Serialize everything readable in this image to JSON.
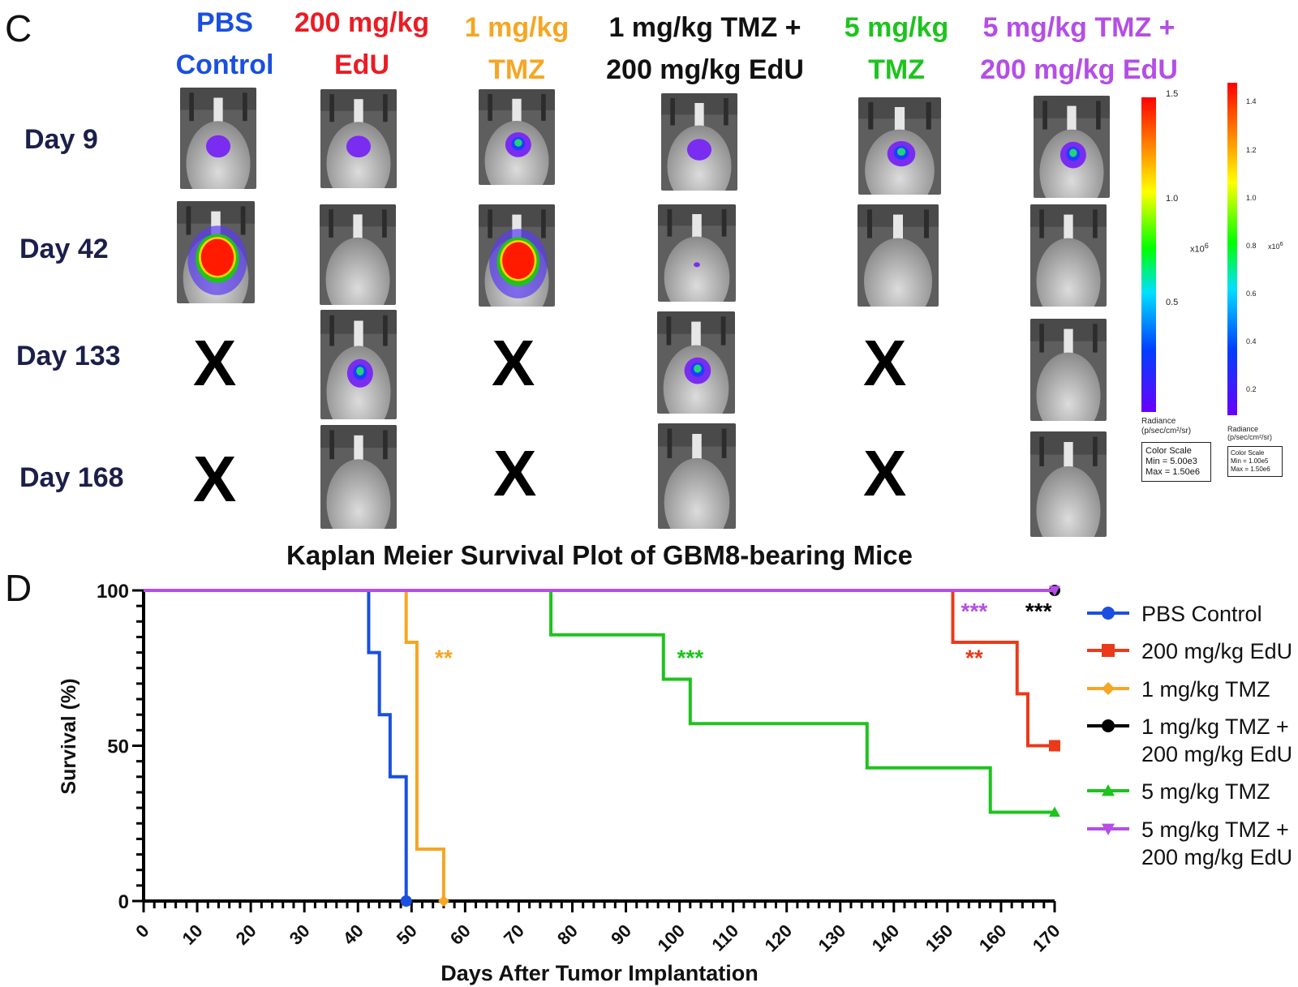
{
  "panel_c": {
    "letter": "C",
    "groups": [
      {
        "line1": "PBS",
        "line2": "Control",
        "color": "#1a4fe0"
      },
      {
        "line1": "200 mg/kg",
        "line2": "EdU",
        "color": "#ea1c24"
      },
      {
        "line1": "1 mg/kg",
        "line2": "TMZ",
        "color": "#f5a623"
      },
      {
        "line1": "1 mg/kg TMZ +",
        "line2": "200 mg/kg EdU",
        "color": "#111111"
      },
      {
        "line1": "5 mg/kg",
        "line2": "TMZ",
        "color": "#1ec31e"
      },
      {
        "line1": "5 mg/kg TMZ +",
        "line2": "200 mg/kg EdU",
        "color": "#b44ee6"
      }
    ],
    "days": [
      "Day 9",
      "Day 42",
      "Day 133",
      "Day 168"
    ],
    "dead_mark": "X",
    "colorbar_left": {
      "ticks": [
        "1.5",
        "1.0",
        "0.5"
      ],
      "exponent": "x10",
      "exponent_power": "6",
      "radiance_label": "Radiance",
      "radiance_units": "(p/sec/cm²/sr)",
      "scale_title": "Color Scale",
      "scale_min": "Min = 5.00e3",
      "scale_max": "Max = 1.50e6"
    },
    "colorbar_right": {
      "ticks": [
        "1.4",
        "1.2",
        "1.0",
        "0.8",
        "0.6",
        "0.4",
        "0.2"
      ],
      "exponent": "x10",
      "exponent_power": "6",
      "radiance_label": "Radiance",
      "radiance_units": "(p/sec/cm²/sr)",
      "scale_title": "Color Scale",
      "scale_min": "Min = 1.00e5",
      "scale_max": "Max = 1.50e6"
    }
  },
  "panel_d": {
    "letter": "D"
  },
  "chart_data": {
    "type": "line",
    "title": "Kaplan Meier Survival Plot of GBM8-bearing Mice",
    "xlabel": "Days After Tumor Implantation",
    "ylabel": "Survival (%)",
    "xlim": [
      0,
      170
    ],
    "ylim": [
      0,
      100
    ],
    "x_ticks": [
      0,
      10,
      20,
      30,
      40,
      50,
      60,
      70,
      80,
      90,
      100,
      110,
      120,
      130,
      140,
      150,
      160,
      170
    ],
    "y_ticks": [
      0,
      50,
      100
    ],
    "series": [
      {
        "name": "PBS Control",
        "color": "#1a4fe0",
        "marker": "circle",
        "steps": [
          [
            0,
            100
          ],
          [
            42,
            80
          ],
          [
            44,
            60
          ],
          [
            46,
            40
          ],
          [
            49,
            0
          ]
        ]
      },
      {
        "name": "200 mg/kg EdU",
        "color": "#ea3a1a",
        "marker": "square",
        "steps": [
          [
            0,
            100
          ],
          [
            151,
            83.3
          ],
          [
            163,
            66.7
          ],
          [
            165,
            50
          ],
          [
            170,
            50
          ]
        ]
      },
      {
        "name": "1 mg/kg TMZ",
        "color": "#f5a623",
        "marker": "diamond",
        "steps": [
          [
            0,
            100
          ],
          [
            49,
            83.3
          ],
          [
            51,
            16.7
          ],
          [
            56,
            0
          ]
        ]
      },
      {
        "name": "1 mg/kg TMZ + 200 mg/kg EdU",
        "legend_line1": "1 mg/kg TMZ +",
        "legend_line2": "200 mg/kg EdU",
        "color": "#000000",
        "marker": "circle",
        "steps": [
          [
            0,
            100
          ],
          [
            170,
            100
          ]
        ]
      },
      {
        "name": "5 mg/kg TMZ",
        "color": "#1ec31e",
        "marker": "triangle",
        "steps": [
          [
            0,
            100
          ],
          [
            76,
            85.7
          ],
          [
            97,
            71.4
          ],
          [
            102,
            57.1
          ],
          [
            135,
            42.9
          ],
          [
            158,
            28.6
          ],
          [
            170,
            28.6
          ]
        ]
      },
      {
        "name": "5 mg/kg TMZ + 200 mg/kg EdU",
        "legend_line1": "5 mg/kg TMZ +",
        "legend_line2": "200 mg/kg EdU",
        "color": "#b44ee6",
        "marker": "triangle-down",
        "steps": [
          [
            0,
            100
          ],
          [
            170,
            100
          ]
        ]
      }
    ],
    "annotations": [
      {
        "text": "**",
        "x": 56,
        "y": 79,
        "color": "#f5a623"
      },
      {
        "text": "***",
        "x": 102,
        "y": 79,
        "color": "#1ec31e"
      },
      {
        "text": "**",
        "x": 155,
        "y": 79,
        "color": "#ea3a1a"
      },
      {
        "text": "***",
        "x": 155,
        "y": 94,
        "color": "#b44ee6"
      },
      {
        "text": "***",
        "x": 167,
        "y": 94,
        "color": "#000000"
      }
    ]
  }
}
